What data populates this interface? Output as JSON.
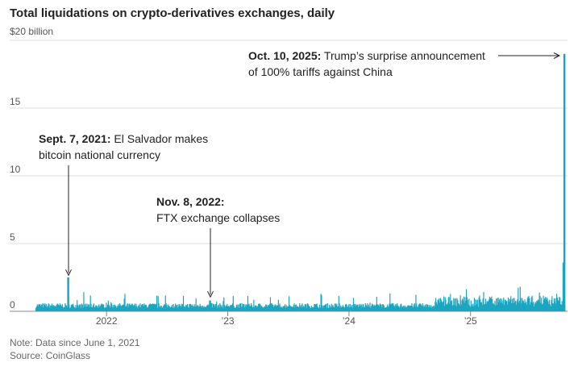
{
  "chart_data": {
    "type": "bar",
    "title": "Total liquidations on crypto-derivatives exchanges, daily",
    "ylabel": "",
    "y_unit_label": "$20 billion",
    "ylim": [
      0,
      20
    ],
    "yticks": [
      {
        "value": 0,
        "label": "0"
      },
      {
        "value": 5,
        "label": "5"
      },
      {
        "value": 10,
        "label": "10"
      },
      {
        "value": 15,
        "label": "15"
      },
      {
        "value": 20,
        "label": "$20 billion"
      }
    ],
    "xlim": [
      "2021-06-01",
      "2025-10-20"
    ],
    "xticks": [
      {
        "date": "2022-01-01",
        "label": "2022"
      },
      {
        "date": "2023-01-01",
        "label": "’23"
      },
      {
        "date": "2024-01-01",
        "label": "’24"
      },
      {
        "date": "2025-01-01",
        "label": "’25"
      }
    ],
    "bar_color": "#1ba6c0",
    "grid": "horizontal",
    "highlights": [
      {
        "date": "2021-09-07",
        "value": 2.5
      },
      {
        "date": "2022-11-08",
        "value": 0.8
      },
      {
        "date": "2025-10-10",
        "value": 19.0
      }
    ],
    "annotations": [
      {
        "date": "2021-09-07",
        "bold": "Sept. 7, 2021:",
        "text": " El Salvador makes",
        "text2": "bitcoin national currency"
      },
      {
        "date": "2022-11-08",
        "bold": "Nov. 8, 2022:",
        "text": "",
        "text2": "FTX exchange collapses"
      },
      {
        "date": "2025-10-10",
        "bold": "Oct. 10, 2025:",
        "text": " Trump’s surprise announcement",
        "text2": "of 100% tariffs against China"
      }
    ]
  },
  "footer": {
    "note": "Note: Data since June 1, 2021",
    "source": "Source: CoinGlass"
  }
}
